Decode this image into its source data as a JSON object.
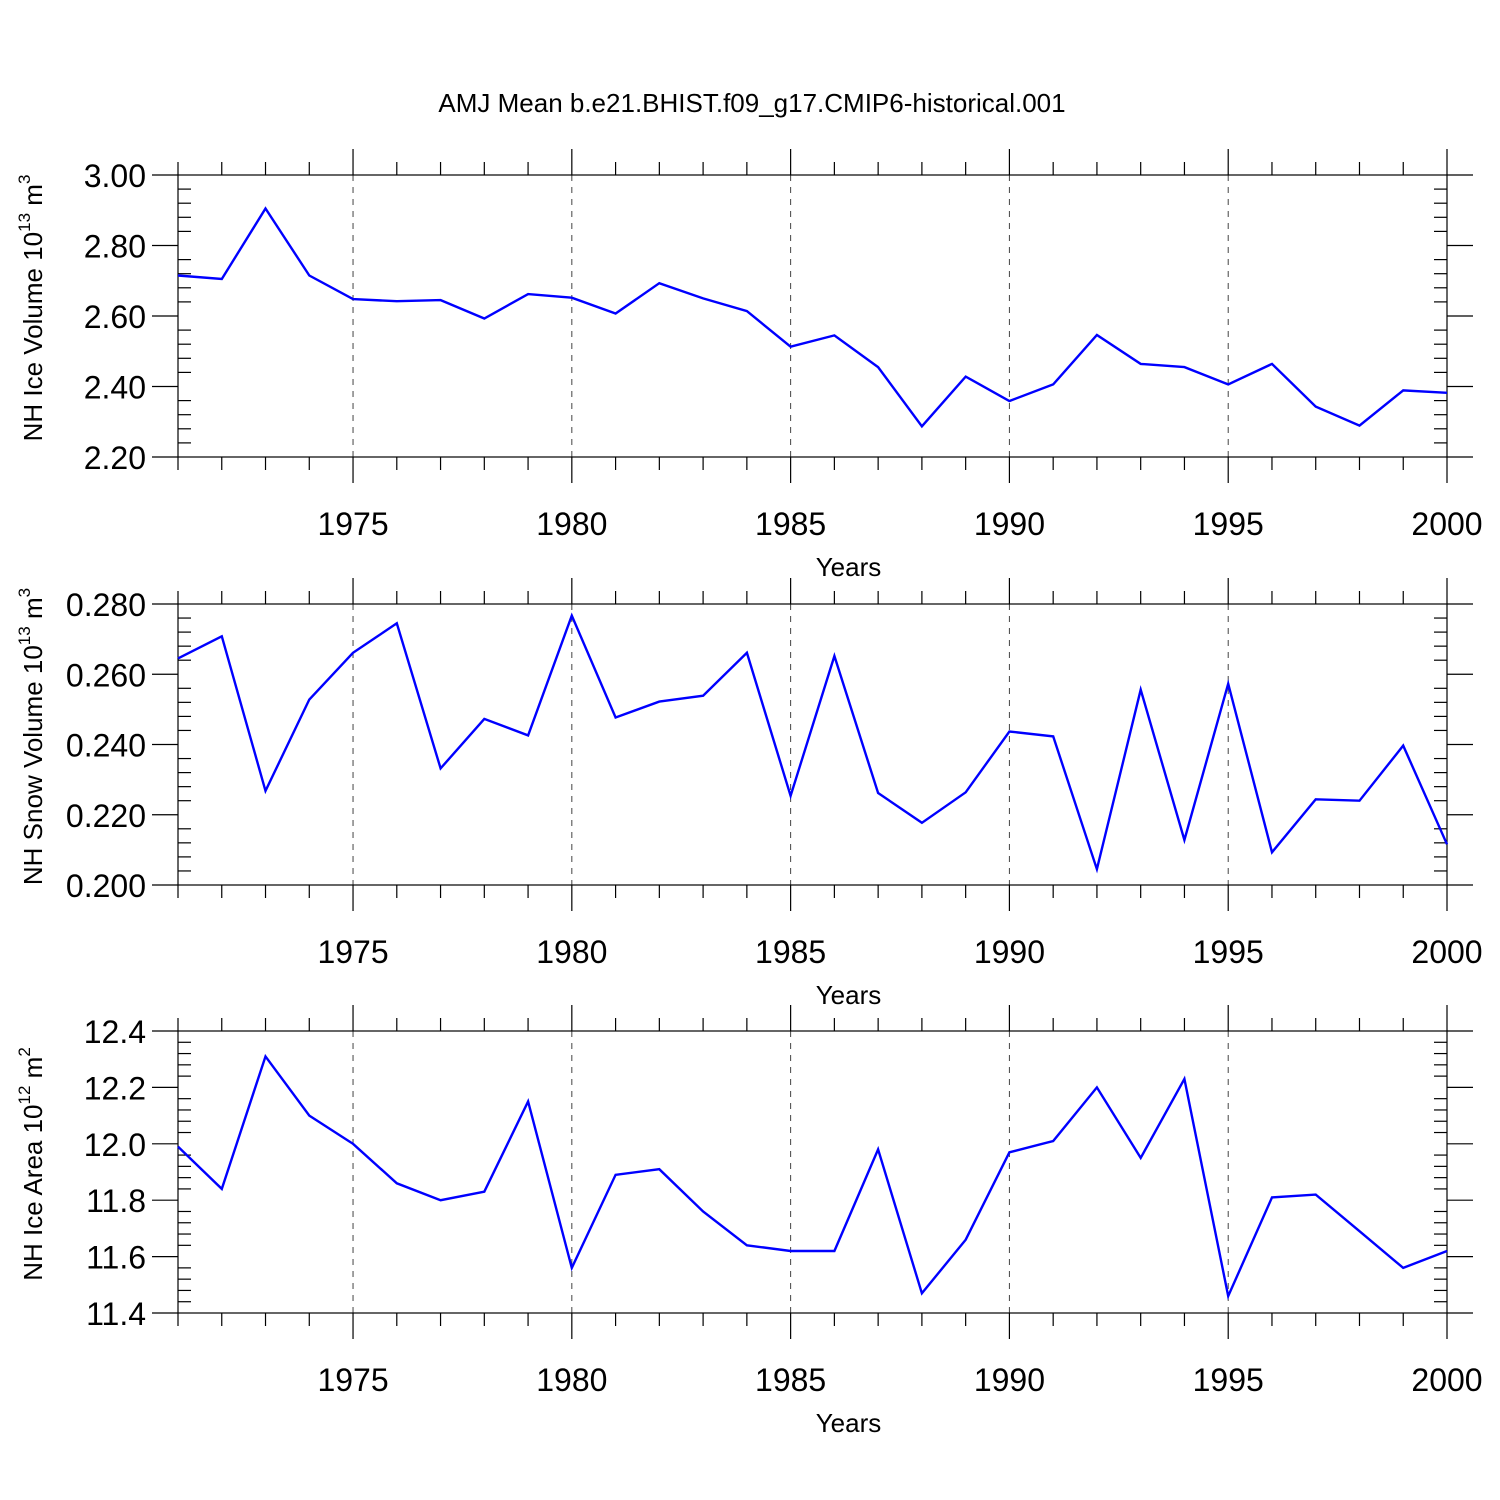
{
  "colors": {
    "line": "#0000ff",
    "axis": "#000000",
    "grid": "#444444",
    "background": "#ffffff"
  },
  "chart_data": {
    "title": "AMJ Mean b.e21.BHIST.f09_g17.CMIP6-historical.001",
    "type": "line",
    "x": [
      1971,
      1972,
      1973,
      1974,
      1975,
      1976,
      1977,
      1978,
      1979,
      1980,
      1981,
      1982,
      1983,
      1984,
      1985,
      1986,
      1987,
      1988,
      1989,
      1990,
      1991,
      1992,
      1993,
      1994,
      1995,
      1996,
      1997,
      1998,
      1999,
      2000
    ],
    "xlim": [
      1971,
      2000
    ],
    "xticks": [
      1975,
      1980,
      1985,
      1990,
      1995,
      2000
    ],
    "xtick_labels": [
      "1975",
      "1980",
      "1985",
      "1990",
      "1995",
      "2000"
    ],
    "xlabel": "Years",
    "panels": [
      {
        "type": "line",
        "ylabel": "NH Ice Volume 10",
        "ylabel_exp": "13",
        "ylabel_unit": " m",
        "ylabel_unit_exp": "3",
        "ylim": [
          2.2,
          3.0
        ],
        "yticks": [
          2.2,
          2.4,
          2.6,
          2.8,
          3.0
        ],
        "ytick_labels": [
          "2.20",
          "2.40",
          "2.60",
          "2.80",
          "3.00"
        ],
        "values": [
          2.715,
          2.705,
          2.905,
          2.715,
          2.648,
          2.642,
          2.645,
          2.593,
          2.662,
          2.652,
          2.607,
          2.693,
          2.65,
          2.614,
          2.513,
          2.545,
          2.455,
          2.287,
          2.428,
          2.359,
          2.406,
          2.546,
          2.464,
          2.455,
          2.406,
          2.464,
          2.343,
          2.289,
          2.389,
          2.382
        ]
      },
      {
        "type": "line",
        "ylabel": "NH Snow Volume 10",
        "ylabel_exp": "13",
        "ylabel_unit": " m",
        "ylabel_unit_exp": "3",
        "ylim": [
          0.2,
          0.28
        ],
        "yticks": [
          0.2,
          0.22,
          0.24,
          0.26,
          0.28
        ],
        "ytick_labels": [
          "0.200",
          "0.220",
          "0.240",
          "0.260",
          "0.280"
        ],
        "values": [
          0.2645,
          0.2708,
          0.2268,
          0.2528,
          0.2661,
          0.2745,
          0.2332,
          0.2473,
          0.2426,
          0.2767,
          0.2477,
          0.2522,
          0.2539,
          0.2661,
          0.2254,
          0.2652,
          0.2262,
          0.2177,
          0.2264,
          0.2437,
          0.2423,
          0.2045,
          0.2556,
          0.2128,
          0.2573,
          0.2093,
          0.2244,
          0.224,
          0.2397,
          0.2116
        ]
      },
      {
        "type": "line",
        "ylabel": "NH Ice Area 10",
        "ylabel_exp": "12",
        "ylabel_unit": " m",
        "ylabel_unit_exp": "2",
        "ylim": [
          11.4,
          12.4
        ],
        "yticks": [
          11.4,
          11.6,
          11.8,
          12.0,
          12.2,
          12.4
        ],
        "ytick_labels": [
          "11.4",
          "11.6",
          "11.8",
          "12.0",
          "12.2",
          "12.4"
        ],
        "values": [
          11.99,
          11.84,
          12.31,
          12.1,
          12.0,
          11.86,
          11.8,
          11.83,
          12.15,
          11.56,
          11.89,
          11.91,
          11.76,
          11.64,
          11.62,
          11.62,
          11.98,
          11.47,
          11.66,
          11.97,
          12.01,
          12.2,
          11.95,
          12.23,
          11.46,
          11.81,
          11.82,
          11.69,
          11.56,
          11.62
        ]
      }
    ]
  }
}
